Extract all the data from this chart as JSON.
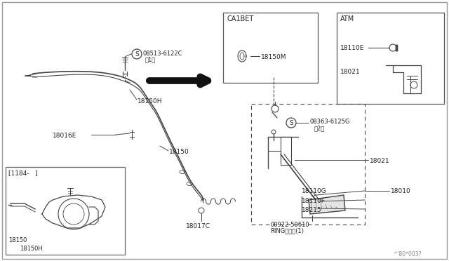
{
  "bg_color": "#ffffff",
  "line_color": "#444444",
  "border_color": "#666666",
  "title_bottom": "^'80*003?",
  "labels": {
    "main_cable": "18150",
    "cable_end_top": "18150H",
    "clip": "18016E",
    "return_spring": "18017C",
    "screw_top": "08513-6122C",
    "screw_top2": "（1）",
    "screw_mid": "08363-6125G",
    "screw_mid2": "（2）",
    "pedal_bracket": "18021",
    "pedal": "18010",
    "pedal_pad": "18110F",
    "pedal_stopper": "18110G",
    "pedal_spring": "18215",
    "ring": "00922-50610",
    "ring2": "RINGリング(1)",
    "inset_label": "[1184-   ]",
    "inset_cable1": "18150",
    "inset_cable2": "18150H",
    "ca1bet_label": "CA1BET",
    "ca1bet_part": "18150M",
    "atm_label": "ATM",
    "atm_part1": "18110E",
    "atm_part2": "18021"
  },
  "font_size": 6.5,
  "small_font": 5.5
}
